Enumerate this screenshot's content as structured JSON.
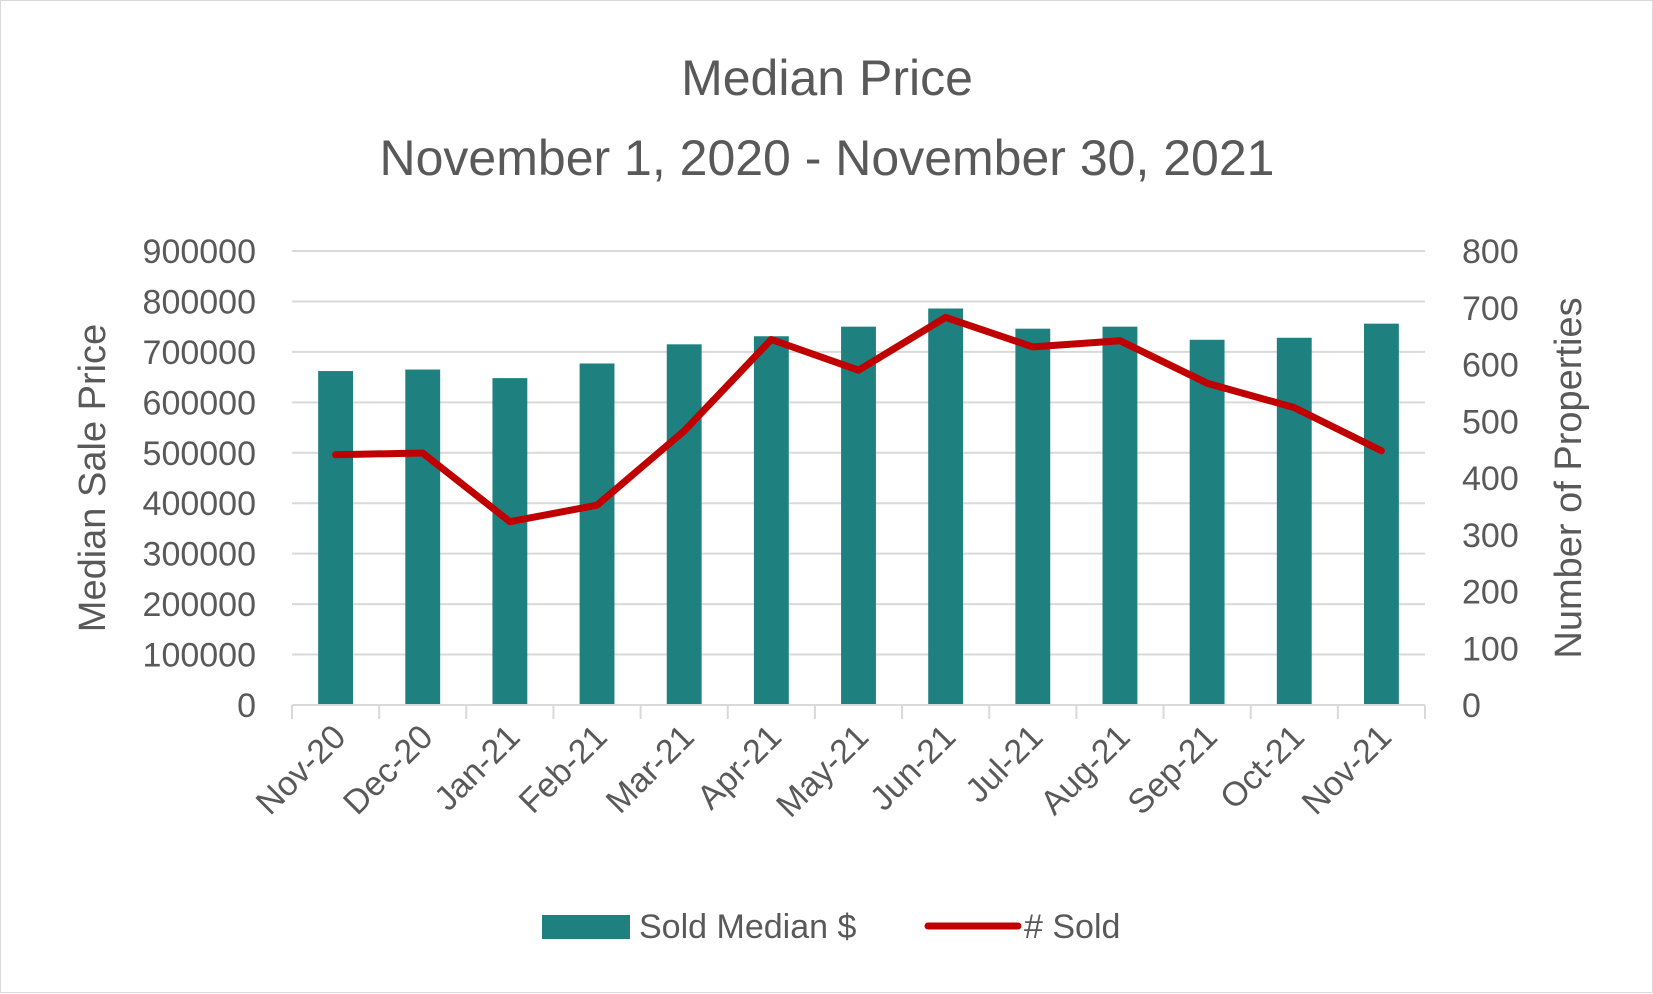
{
  "chart_data": {
    "type": "bar",
    "title": "Median Price",
    "subtitle": "November 1, 2020 - November 30, 2021",
    "categories": [
      "Nov-20",
      "Dec-20",
      "Jan-21",
      "Feb-21",
      "Mar-21",
      "Apr-21",
      "May-21",
      "Jun-21",
      "Jul-21",
      "Aug-21",
      "Sep-21",
      "Oct-21",
      "Nov-21"
    ],
    "series": [
      {
        "name": "Sold Median $",
        "type": "bar",
        "axis": "left",
        "color": "#1f8080",
        "values": [
          662000,
          665000,
          648000,
          677000,
          715000,
          731000,
          750000,
          786000,
          746000,
          750000,
          724000,
          728000,
          756000
        ]
      },
      {
        "name": "# Sold",
        "type": "line",
        "axis": "right",
        "color": "#c00000",
        "values": [
          441,
          444,
          323,
          352,
          483,
          644,
          590,
          683,
          631,
          642,
          567,
          524,
          448
        ]
      }
    ],
    "ylabel": "Median Sale Price",
    "ylabel_right": "Number of Properties",
    "ylim": [
      0,
      900000
    ],
    "ylim_right": [
      0,
      800
    ],
    "yticks": [
      "0",
      "100000",
      "200000",
      "300000",
      "400000",
      "500000",
      "600000",
      "700000",
      "800000",
      "900000"
    ],
    "yticks_right": [
      "0",
      "100",
      "200",
      "300",
      "400",
      "500",
      "600",
      "700",
      "800"
    ],
    "grid": true,
    "legend": "bottom"
  }
}
